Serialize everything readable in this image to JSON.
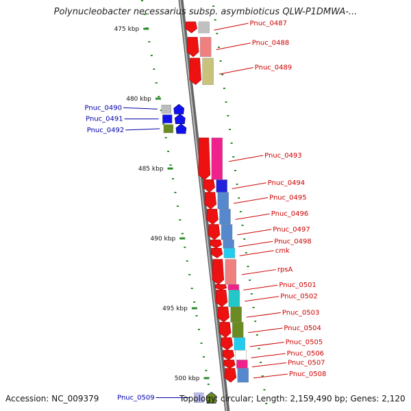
{
  "title": "Polynucleobacter necessarius subsp. asymbioticus QLW-P1DMWA-...",
  "accession": "Accession: NC_009379",
  "stats": "Topology: circular; Length: 2,159,490 bp; Genes: 2,120",
  "colors": {
    "backbone": "#8c8c8c",
    "tick": "#2a8a2a",
    "label_forward": "#cc0000",
    "label_reverse": "#0000aa",
    "cds_red": "#ee1111",
    "cds_blue": "#1111ee",
    "cds_olive": "#6a8a22"
  },
  "ticks": [
    {
      "kbp": 475,
      "label": "475 kbp"
    },
    {
      "kbp": 480,
      "label": "480 kbp"
    },
    {
      "kbp": 485,
      "label": "485 kbp"
    },
    {
      "kbp": 490,
      "label": "490 kbp"
    },
    {
      "kbp": 495,
      "label": "495 kbp"
    },
    {
      "kbp": 500,
      "label": "500 kbp"
    }
  ],
  "genes": [
    {
      "name": "Pnuc_0487",
      "strand": "+",
      "start": 474.5,
      "end": 475.3,
      "color": "#ee1111",
      "band": "#c0c0c0"
    },
    {
      "name": "Pnuc_0488",
      "strand": "+",
      "start": 475.6,
      "end": 477.0,
      "color": "#ee1111",
      "band": "#f08080"
    },
    {
      "name": "Pnuc_0489",
      "strand": "+",
      "start": 477.1,
      "end": 479.0,
      "color": "#ee1111",
      "band": "#c9c27a"
    },
    {
      "name": "Pnuc_0490",
      "strand": "-",
      "start": 480.4,
      "end": 481.1,
      "color": "#1111ee",
      "band": "#bdbdbd"
    },
    {
      "name": "Pnuc_0491",
      "strand": "-",
      "start": 481.1,
      "end": 481.8,
      "color": "#1111ee",
      "band": "#1111ee"
    },
    {
      "name": "Pnuc_0492",
      "strand": "-",
      "start": 481.8,
      "end": 482.5,
      "color": "#1111ee",
      "band": "#6a8a22"
    },
    {
      "name": "Pnuc_0493",
      "strand": "+",
      "start": 482.8,
      "end": 485.8,
      "color": "#ee1111",
      "band": "#f0208c"
    },
    {
      "name": "Pnuc_0494",
      "strand": "+",
      "start": 485.8,
      "end": 486.7,
      "color": "#ee1111",
      "band": "#2222dd"
    },
    {
      "name": "Pnuc_0495",
      "strand": "+",
      "start": 486.7,
      "end": 487.9,
      "color": "#ee1111",
      "band": "#5588cc"
    },
    {
      "name": "Pnuc_0496",
      "strand": "+",
      "start": 487.9,
      "end": 489.0,
      "color": "#ee1111",
      "band": "#5588cc"
    },
    {
      "name": "Pnuc_0497",
      "strand": "+",
      "start": 489.0,
      "end": 490.1,
      "color": "#ee1111",
      "band": "#5588cc"
    },
    {
      "name": "Pnuc_0498",
      "strand": "+",
      "start": 490.1,
      "end": 490.7,
      "color": "#ee1111",
      "band": "#5588cc"
    },
    {
      "name": "cmk",
      "strand": "+",
      "start": 490.7,
      "end": 491.4,
      "color": "#ee1111",
      "band": "#22ccee"
    },
    {
      "name": "rpsA",
      "strand": "+",
      "start": 491.5,
      "end": 493.3,
      "color": "#ee1111",
      "band": "#f08080"
    },
    {
      "name": "Pnuc_0501",
      "strand": "+",
      "start": 493.3,
      "end": 493.7,
      "color": "#ee1111",
      "band": "#f0208c"
    },
    {
      "name": "Pnuc_0502",
      "strand": "+",
      "start": 493.7,
      "end": 494.9,
      "color": "#ee1111",
      "band": "#22c8c8"
    },
    {
      "name": "Pnuc_0503",
      "strand": "+",
      "start": 494.9,
      "end": 496.0,
      "color": "#ee1111",
      "band": "#6a8a22"
    },
    {
      "name": "Pnuc_0504",
      "strand": "+",
      "start": 496.0,
      "end": 497.1,
      "color": "#ee1111",
      "band": "#6a8a22"
    },
    {
      "name": "Pnuc_0505",
      "strand": "+",
      "start": 497.1,
      "end": 498.0,
      "color": "#ee1111",
      "band": "#22ccee"
    },
    {
      "name": "Pnuc_0506",
      "strand": "+",
      "start": 498.0,
      "end": 498.7,
      "color": "#ee1111",
      "band": "#ffffff"
    },
    {
      "name": "Pnuc_0507",
      "strand": "+",
      "start": 498.7,
      "end": 499.3,
      "color": "#ee1111",
      "band": "#f0208c"
    },
    {
      "name": "Pnuc_0508",
      "strand": "+",
      "start": 499.3,
      "end": 500.3,
      "color": "#ee1111",
      "band": "#5588cc"
    },
    {
      "name": "Pnuc_0509",
      "strand": "-",
      "start": 501.0,
      "end": 501.8,
      "color": "#6a8a22",
      "band": "#bbbbee"
    }
  ]
}
